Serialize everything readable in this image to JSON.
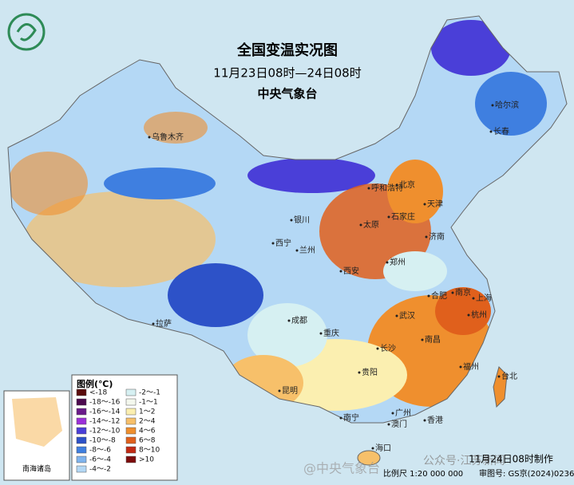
{
  "header": {
    "title": "全国变温实况图",
    "subtitle": "11月23日08时—24日08时",
    "agency": "中央气象台"
  },
  "legend": {
    "title": "图例(℃)",
    "items": [
      {
        "label": "<-18",
        "color": "#5a0d0d"
      },
      {
        "label": "-18～-16",
        "color": "#4b0a4e"
      },
      {
        "label": "-16～-14",
        "color": "#6a1b8a"
      },
      {
        "label": "-14～-12",
        "color": "#9b30d9"
      },
      {
        "label": "-12～-10",
        "color": "#4a3fd8"
      },
      {
        "label": "-10～-8",
        "color": "#2d52c8"
      },
      {
        "label": "-8～-6",
        "color": "#3f7fe0"
      },
      {
        "label": "-6～-4",
        "color": "#7fb4ee"
      },
      {
        "label": "-4～-2",
        "color": "#b4d8f5"
      },
      {
        "label": "-2～-1",
        "color": "#d6f0f2"
      },
      {
        "label": "-1～1",
        "color": "#f4f8ee"
      },
      {
        "label": "1～2",
        "color": "#fbefb0"
      },
      {
        "label": "2～4",
        "color": "#f7c06a"
      },
      {
        "label": "4～6",
        "color": "#ef8f2e"
      },
      {
        "label": "6～8",
        "color": "#e0601c"
      },
      {
        "label": "8～10",
        "color": "#c22a14"
      },
      {
        "label": ">10",
        "color": "#7d0c0c"
      }
    ]
  },
  "cities": [
    "哈尔滨",
    "长春",
    "乌鲁木齐",
    "呼和浩特",
    "北京",
    "天津",
    "石家庄",
    "太原",
    "济南",
    "银川",
    "西宁",
    "兰州",
    "郑州",
    "西安",
    "合肥",
    "南京",
    "上海",
    "杭州",
    "武汉",
    "成都",
    "拉萨",
    "重庆",
    "长沙",
    "南昌",
    "福州",
    "贵阳",
    "昆明",
    "台北",
    "南宁",
    "广州",
    "澳门",
    "香港",
    "海口"
  ],
  "inset": {
    "label": "南海诸岛"
  },
  "footer": {
    "made": "11月24日08时制作",
    "scale": "比例尺 1:20 000 000",
    "approval": "审图号: GS京(2024)0236号",
    "watermark": "@中央气象台",
    "source": "公众号·江苏新闻"
  }
}
